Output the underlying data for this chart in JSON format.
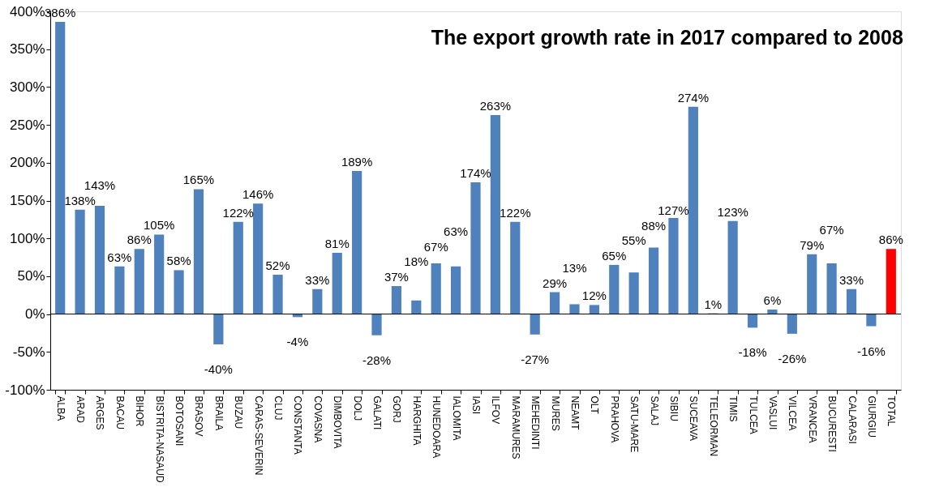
{
  "chart_data": {
    "type": "bar",
    "title": "The export growth rate in 2017 compared to 2008",
    "categories": [
      "ALBA",
      "ARAD",
      "ARGES",
      "BACAU",
      "BIHOR",
      "BISTRITA-NASAUD",
      "BOTOSANI",
      "BRASOV",
      "BRAILA",
      "BUZAU",
      "CARAS-SEVERIN",
      "CLUJ",
      "CONSTANTA",
      "COVASNA",
      "DIMBOVITA",
      "DOLJ",
      "GALATI",
      "GORJ",
      "HARGHITA",
      "HUNEDOARA",
      "IALOMITA",
      "IASI",
      "ILFOV",
      "MARAMURES",
      "MEHEDINTI",
      "MURES",
      "NEAMT",
      "OLT",
      "PRAHOVA",
      "SATU-MARE",
      "SALAJ",
      "SIBIU",
      "SUCEAVA",
      "TELEORMAN",
      "TIMIS",
      "TULCEA",
      "VASLUI",
      "VILCEA",
      "VRANCEA",
      "BUCURESTI",
      "CALARASI",
      "GIURGIU",
      null,
      "TOTAL"
    ],
    "values": [
      386,
      138,
      143,
      63,
      86,
      105,
      58,
      165,
      -40,
      122,
      146,
      52,
      -4,
      33,
      81,
      189,
      -28,
      37,
      18,
      67,
      63,
      174,
      263,
      122,
      -27,
      29,
      13,
      12,
      65,
      55,
      88,
      127,
      274,
      1,
      123,
      -18,
      6,
      -26,
      79,
      67,
      33,
      -16,
      null,
      86
    ],
    "value_labels": [
      "386%",
      "138%",
      "143%",
      "63%",
      "86%",
      "105%",
      "58%",
      "165%",
      "-40%",
      "122%",
      "146%",
      "52%",
      "-4%",
      "33%",
      "81%",
      "189%",
      "-28%",
      "37%",
      "18%",
      "67%",
      "63%",
      "174%",
      "263%",
      "122%",
      "-27%",
      "29%",
      "13%",
      "12%",
      "65%",
      "55%",
      "88%",
      "127%",
      "274%",
      "1%",
      "123%",
      "-18%",
      "6%",
      "-26%",
      "79%",
      "67%",
      "33%",
      "-16%",
      null,
      "86%"
    ],
    "colors": [
      "#4f81bd",
      "#4f81bd",
      "#4f81bd",
      "#4f81bd",
      "#4f81bd",
      "#4f81bd",
      "#4f81bd",
      "#4f81bd",
      "#4f81bd",
      "#4f81bd",
      "#4f81bd",
      "#4f81bd",
      "#4f81bd",
      "#4f81bd",
      "#4f81bd",
      "#4f81bd",
      "#4f81bd",
      "#4f81bd",
      "#4f81bd",
      "#4f81bd",
      "#4f81bd",
      "#4f81bd",
      "#4f81bd",
      "#4f81bd",
      "#4f81bd",
      "#4f81bd",
      "#4f81bd",
      "#4f81bd",
      "#4f81bd",
      "#4f81bd",
      "#4f81bd",
      "#4f81bd",
      "#4f81bd",
      "#4f81bd",
      "#4f81bd",
      "#4f81bd",
      "#4f81bd",
      "#4f81bd",
      "#4f81bd",
      "#4f81bd",
      "#4f81bd",
      "#4f81bd",
      "#4f81bd",
      "#ff0000"
    ],
    "ylim": [
      -100,
      400
    ],
    "yticks": [
      {
        "value": -100,
        "label": "-100%"
      },
      {
        "value": -50,
        "label": "-50%"
      },
      {
        "value": 0,
        "label": "0%"
      },
      {
        "value": 50,
        "label": "50%"
      },
      {
        "value": 100,
        "label": "100%"
      },
      {
        "value": 150,
        "label": "150%"
      },
      {
        "value": 200,
        "label": "200%"
      },
      {
        "value": 250,
        "label": "250%"
      },
      {
        "value": 300,
        "label": "300%"
      },
      {
        "value": 350,
        "label": "350%"
      },
      {
        "value": 400,
        "label": "400%"
      }
    ],
    "ref_lines": [
      {
        "axis": "y",
        "value": 0,
        "color": "#000000"
      }
    ],
    "grid": false
  }
}
